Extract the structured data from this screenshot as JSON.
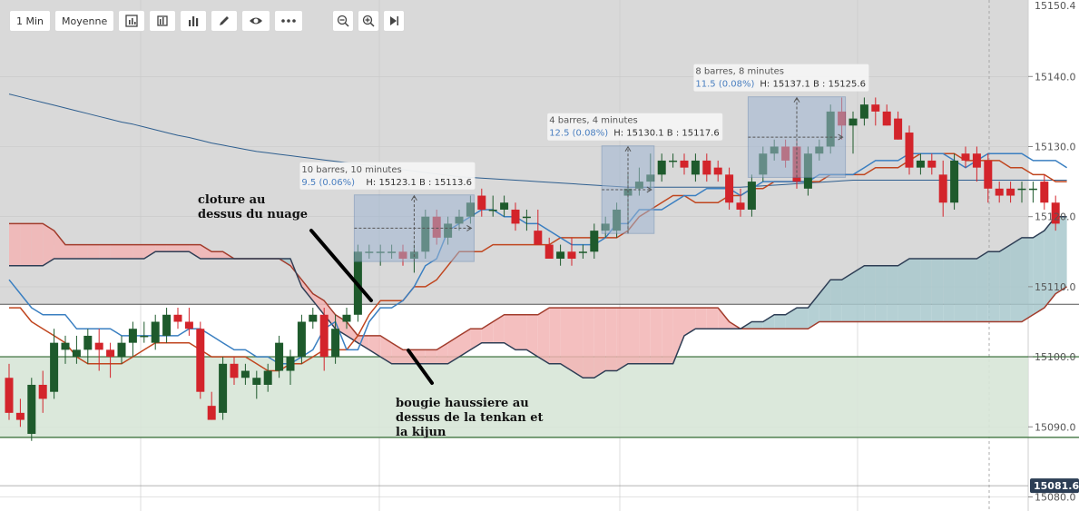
{
  "toolbar": {
    "timeframe": "1 Min",
    "mode": "Moyenne",
    "icons": [
      "indicators-icon",
      "compare-icon",
      "bar-chart-icon",
      "draw-icon",
      "eye-icon",
      "more-icon"
    ],
    "zoom_icons": [
      "zoom-out-icon",
      "zoom-in-icon",
      "play-icon"
    ]
  },
  "colors": {
    "bull": "#1e5a2c",
    "bear": "#d3242b",
    "tenkan": "#3a7fc1",
    "kijun": "#c0461f",
    "senkou_a": "#a23c2c",
    "senkou_b": "#2e3e55",
    "cloud_bear": "#f2b4b4",
    "cloud_bull": "#a8c8cc",
    "ma": "#2f5f8f",
    "zone": "#d7e5d7",
    "zone_line": "#4f7f4f",
    "grey_bg": "#d9d9d9"
  },
  "chart_data": {
    "type": "candlestick",
    "ylim": [
      15080.0,
      15150.4
    ],
    "y_ticks": [
      "15080.0",
      "15090.0",
      "15100.0",
      "15110.0",
      "15120.0",
      "15130.0",
      "15140.0"
    ],
    "top_price_label": "15150.4",
    "current_price_label": "15081.6",
    "horizontal_levels": [
      15107.5,
      15100.0,
      15088.5
    ],
    "candles": [
      {
        "o": 15097,
        "h": 15099,
        "l": 15091,
        "c": 15092
      },
      {
        "o": 15092,
        "h": 15094,
        "l": 15090,
        "c": 15091
      },
      {
        "o": 15089,
        "h": 15097,
        "l": 15088,
        "c": 15096
      },
      {
        "o": 15096,
        "h": 15098,
        "l": 15092,
        "c": 15094
      },
      {
        "o": 15095,
        "h": 15104,
        "l": 15094,
        "c": 15102
      },
      {
        "o": 15101,
        "h": 15103,
        "l": 15099,
        "c": 15102
      },
      {
        "o": 15100,
        "h": 15103,
        "l": 15099,
        "c": 15101
      },
      {
        "o": 15101,
        "h": 15104,
        "l": 15099,
        "c": 15103
      },
      {
        "o": 15102,
        "h": 15104,
        "l": 15098,
        "c": 15101
      },
      {
        "o": 15101,
        "h": 15102,
        "l": 15097,
        "c": 15100
      },
      {
        "o": 15100,
        "h": 15103,
        "l": 15099,
        "c": 15102
      },
      {
        "o": 15102,
        "h": 15105,
        "l": 15100,
        "c": 15104
      },
      {
        "o": 15103,
        "h": 15105,
        "l": 15102,
        "c": 15103
      },
      {
        "o": 15102,
        "h": 15106,
        "l": 15101,
        "c": 15105
      },
      {
        "o": 15103,
        "h": 15107,
        "l": 15102,
        "c": 15106
      },
      {
        "o": 15106,
        "h": 15107,
        "l": 15104,
        "c": 15105
      },
      {
        "o": 15105,
        "h": 15107,
        "l": 15103,
        "c": 15104
      },
      {
        "o": 15104,
        "h": 15105,
        "l": 15094,
        "c": 15095
      },
      {
        "o": 15093,
        "h": 15095,
        "l": 15091,
        "c": 15091
      },
      {
        "o": 15092,
        "h": 15100,
        "l": 15091,
        "c": 15099
      },
      {
        "o": 15099,
        "h": 15100,
        "l": 15096,
        "c": 15097
      },
      {
        "o": 15097,
        "h": 15099,
        "l": 15096,
        "c": 15098
      },
      {
        "o": 15096,
        "h": 15098,
        "l": 15094,
        "c": 15097
      },
      {
        "o": 15096,
        "h": 15099,
        "l": 15095,
        "c": 15098
      },
      {
        "o": 15098,
        "h": 15103,
        "l": 15097,
        "c": 15102
      },
      {
        "o": 15098,
        "h": 15101,
        "l": 15096,
        "c": 15100
      },
      {
        "o": 15100,
        "h": 15106,
        "l": 15099,
        "c": 15105
      },
      {
        "o": 15105,
        "h": 15107,
        "l": 15104,
        "c": 15106
      },
      {
        "o": 15106,
        "h": 15107,
        "l": 15098,
        "c": 15100
      },
      {
        "o": 15100,
        "h": 15106,
        "l": 15099,
        "c": 15104
      },
      {
        "o": 15105,
        "h": 15107,
        "l": 15104,
        "c": 15106
      },
      {
        "o": 15106,
        "h": 15116,
        "l": 15105,
        "c": 15115
      },
      {
        "o": 15115,
        "h": 15116,
        "l": 15114,
        "c": 15115
      },
      {
        "o": 15115,
        "h": 15116,
        "l": 15113,
        "c": 15115
      },
      {
        "o": 15115,
        "h": 15116,
        "l": 15114,
        "c": 15115
      },
      {
        "o": 15115,
        "h": 15116,
        "l": 15113,
        "c": 15114
      },
      {
        "o": 15114,
        "h": 15116,
        "l": 15112,
        "c": 15115
      },
      {
        "o": 15115,
        "h": 15121,
        "l": 15114,
        "c": 15120
      },
      {
        "o": 15120,
        "h": 15121,
        "l": 15116,
        "c": 15117
      },
      {
        "o": 15117,
        "h": 15120,
        "l": 15116,
        "c": 15119
      },
      {
        "o": 15119,
        "h": 15121,
        "l": 15118,
        "c": 15120
      },
      {
        "o": 15120,
        "h": 15123,
        "l": 15119,
        "c": 15122
      },
      {
        "o": 15123,
        "h": 15124,
        "l": 15120,
        "c": 15121
      },
      {
        "o": 15121,
        "h": 15123,
        "l": 15120,
        "c": 15121
      },
      {
        "o": 15121,
        "h": 15123,
        "l": 15120,
        "c": 15122
      },
      {
        "o": 15121,
        "h": 15122,
        "l": 15118,
        "c": 15119
      },
      {
        "o": 15120,
        "h": 15121,
        "l": 15118,
        "c": 15120
      },
      {
        "o": 15118,
        "h": 15121,
        "l": 15116,
        "c": 15116
      },
      {
        "o": 15116,
        "h": 15117,
        "l": 15114,
        "c": 15114
      },
      {
        "o": 15114,
        "h": 15116,
        "l": 15113,
        "c": 15115
      },
      {
        "o": 15115,
        "h": 15117,
        "l": 15113,
        "c": 15114
      },
      {
        "o": 15115,
        "h": 15116,
        "l": 15114,
        "c": 15115
      },
      {
        "o": 15115,
        "h": 15119,
        "l": 15114,
        "c": 15118
      },
      {
        "o": 15118,
        "h": 15120,
        "l": 15117,
        "c": 15119
      },
      {
        "o": 15118,
        "h": 15122,
        "l": 15117,
        "c": 15121
      },
      {
        "o": 15123,
        "h": 15126,
        "l": 15118,
        "c": 15124
      },
      {
        "o": 15124,
        "h": 15127,
        "l": 15123,
        "c": 15125
      },
      {
        "o": 15125,
        "h": 15129,
        "l": 15124,
        "c": 15126
      },
      {
        "o": 15126,
        "h": 15129,
        "l": 15125,
        "c": 15128
      },
      {
        "o": 15128,
        "h": 15129,
        "l": 15127,
        "c": 15128
      },
      {
        "o": 15128,
        "h": 15129,
        "l": 15126,
        "c": 15127
      },
      {
        "o": 15126,
        "h": 15129,
        "l": 15125,
        "c": 15128
      },
      {
        "o": 15128,
        "h": 15129,
        "l": 15125,
        "c": 15126
      },
      {
        "o": 15127,
        "h": 15128,
        "l": 15125,
        "c": 15126
      },
      {
        "o": 15126,
        "h": 15127,
        "l": 15121,
        "c": 15122
      },
      {
        "o": 15122,
        "h": 15124,
        "l": 15120,
        "c": 15121
      },
      {
        "o": 15121,
        "h": 15126,
        "l": 15120,
        "c": 15125
      },
      {
        "o": 15126,
        "h": 15130,
        "l": 15125,
        "c": 15129
      },
      {
        "o": 15129,
        "h": 15131,
        "l": 15128,
        "c": 15130
      },
      {
        "o": 15130,
        "h": 15131,
        "l": 15127,
        "c": 15128
      },
      {
        "o": 15130,
        "h": 15131,
        "l": 15124,
        "c": 15125
      },
      {
        "o": 15124,
        "h": 15130,
        "l": 15123,
        "c": 15129
      },
      {
        "o": 15129,
        "h": 15131,
        "l": 15128,
        "c": 15130
      },
      {
        "o": 15130,
        "h": 15136,
        "l": 15129,
        "c": 15135
      },
      {
        "o": 15135,
        "h": 15137,
        "l": 15131,
        "c": 15133
      },
      {
        "o": 15133,
        "h": 15135,
        "l": 15129,
        "c": 15134
      },
      {
        "o": 15134,
        "h": 15137,
        "l": 15133,
        "c": 15136
      },
      {
        "o": 15136,
        "h": 15137,
        "l": 15133,
        "c": 15135
      },
      {
        "o": 15135,
        "h": 15136,
        "l": 15133,
        "c": 15133
      },
      {
        "o": 15134,
        "h": 15135,
        "l": 15131,
        "c": 15131
      },
      {
        "o": 15132,
        "h": 15133,
        "l": 15126,
        "c": 15127
      },
      {
        "o": 15127,
        "h": 15129,
        "l": 15126,
        "c": 15128
      },
      {
        "o": 15128,
        "h": 15129,
        "l": 15126,
        "c": 15127
      },
      {
        "o": 15126,
        "h": 15128,
        "l": 15120,
        "c": 15122
      },
      {
        "o": 15122,
        "h": 15129,
        "l": 15121,
        "c": 15128
      },
      {
        "o": 15129,
        "h": 15130,
        "l": 15127,
        "c": 15128
      },
      {
        "o": 15129,
        "h": 15130,
        "l": 15125,
        "c": 15127
      },
      {
        "o": 15128,
        "h": 15129,
        "l": 15122,
        "c": 15124
      },
      {
        "o": 15124,
        "h": 15125,
        "l": 15122,
        "c": 15123
      },
      {
        "o": 15124,
        "h": 15125,
        "l": 15122,
        "c": 15123
      },
      {
        "o": 15124,
        "h": 15125,
        "l": 15122,
        "c": 15124
      },
      {
        "o": 15124,
        "h": 15125,
        "l": 15122,
        "c": 15124
      },
      {
        "o": 15125,
        "h": 15126,
        "l": 15121,
        "c": 15122
      },
      {
        "o": 15122,
        "h": 15123,
        "l": 15118,
        "c": 15119
      }
    ],
    "tenkan": [
      15111,
      15109,
      15107,
      15106,
      15106,
      15106,
      15104,
      15104,
      15104,
      15104,
      15103,
      15103,
      15103,
      15103,
      15103,
      15103,
      15104,
      15104,
      15103,
      15102,
      15101,
      15101,
      15100,
      15100,
      15099,
      15099,
      15100,
      15101,
      15104,
      15105,
      15101,
      15101,
      15105,
      15107,
      15107,
      15108,
      15110,
      15113,
      15114,
      15118,
      15119,
      15120,
      15121,
      15121,
      15120,
      15120,
      15119,
      15119,
      15118,
      15117,
      15116,
      15116,
      15116,
      15117,
      15119,
      15119,
      15121,
      15121,
      15121,
      15122,
      15123,
      15123,
      15124,
      15124,
      15124,
      15123,
      15124,
      15125,
      15125,
      15125,
      15125,
      15125,
      15126,
      15126,
      15126,
      15126,
      15127,
      15128,
      15128,
      15128,
      15129,
      15129,
      15129,
      15129,
      15128,
      15127,
      15128,
      15129,
      15129,
      15129,
      15129,
      15128,
      15128,
      15128,
      15127
    ],
    "kijun": [
      15107,
      15107,
      15105,
      15104,
      15103,
      15102,
      15100,
      15099,
      15099,
      15099,
      15099,
      15100,
      15101,
      15102,
      15102,
      15102,
      15102,
      15101,
      15100,
      15100,
      15100,
      15100,
      15099,
      15098,
      15098,
      15099,
      15099,
      15100,
      15101,
      15101,
      15101,
      15103,
      15106,
      15108,
      15108,
      15108,
      15110,
      15110,
      15111,
      15113,
      15115,
      15115,
      15115,
      15116,
      15116,
      15116,
      15116,
      15116,
      15116,
      15117,
      15117,
      15117,
      15117,
      15117,
      15117,
      15118,
      15120,
      15121,
      15122,
      15123,
      15123,
      15122,
      15122,
      15122,
      15123,
      15123,
      15124,
      15124,
      15125,
      15125,
      15125,
      15125,
      15125,
      15126,
      15126,
      15126,
      15126,
      15127,
      15127,
      15127,
      15128,
      15129,
      15129,
      15129,
      15129,
      15128,
      15128,
      15128,
      15128,
      15127,
      15127,
      15126,
      15126,
      15125,
      15125
    ],
    "senkou_a": [
      15119,
      15119,
      15119,
      15119,
      15118,
      15116,
      15116,
      15116,
      15116,
      15116,
      15116,
      15116,
      15116,
      15116,
      15116,
      15116,
      15116,
      15116,
      15115,
      15115,
      15114,
      15114,
      15114,
      15114,
      15114,
      15113,
      15111,
      15109,
      15108,
      15106,
      15105,
      15103,
      15103,
      15103,
      15102,
      15101,
      15101,
      15101,
      15101,
      15102,
      15103,
      15104,
      15104,
      15105,
      15106,
      15106,
      15106,
      15106,
      15107,
      15107,
      15107,
      15107,
      15107,
      15107,
      15107,
      15107,
      15107,
      15107,
      15107,
      15107,
      15107,
      15107,
      15107,
      15107,
      15105,
      15104,
      15104,
      15104,
      15104,
      15104,
      15104,
      15104,
      15105,
      15105,
      15105,
      15105,
      15105,
      15105,
      15105,
      15105,
      15105,
      15105,
      15105,
      15105,
      15105,
      15105,
      15105,
      15105,
      15105,
      15105,
      15105,
      15106,
      15107,
      15109,
      15110
    ],
    "senkou_b": [
      15113,
      15113,
      15113,
      15113,
      15114,
      15114,
      15114,
      15114,
      15114,
      15114,
      15114,
      15114,
      15114,
      15115,
      15115,
      15115,
      15115,
      15114,
      15114,
      15114,
      15114,
      15114,
      15114,
      15114,
      15114,
      15114,
      15110,
      15108,
      15106,
      15104,
      15103,
      15102,
      15101,
      15100,
      15099,
      15099,
      15099,
      15099,
      15099,
      15099,
      15100,
      15101,
      15102,
      15102,
      15102,
      15101,
      15101,
      15100,
      15099,
      15099,
      15098,
      15097,
      15097,
      15098,
      15098,
      15099,
      15099,
      15099,
      15099,
      15099,
      15103,
      15104,
      15104,
      15104,
      15104,
      15104,
      15105,
      15105,
      15106,
      15106,
      15107,
      15107,
      15109,
      15111,
      15111,
      15112,
      15113,
      15113,
      15113,
      15113,
      15114,
      15114,
      15114,
      15114,
      15114,
      15114,
      15114,
      15115,
      15115,
      15116,
      15117,
      15117,
      15118,
      15120,
      15120
    ],
    "ma": [
      15137.5,
      15137.1,
      15136.7,
      15136.3,
      15135.9,
      15135.5,
      15135.1,
      15134.7,
      15134.3,
      15133.9,
      15133.5,
      15133.2,
      15132.8,
      15132.4,
      15132.0,
      15131.6,
      15131.3,
      15130.9,
      15130.5,
      15130.2,
      15129.9,
      15129.6,
      15129.3,
      15129.1,
      15128.9,
      15128.7,
      15128.5,
      15128.3,
      15128.1,
      15127.9,
      15127.7,
      15127.5,
      15127.3,
      15127.1,
      15126.9,
      15126.7,
      15126.5,
      15126.3,
      15126.1,
      15125.9,
      15125.7,
      15125.6,
      15125.5,
      15125.4,
      15125.3,
      15125.2,
      15125.1,
      15125.0,
      15124.9,
      15124.8,
      15124.7,
      15124.6,
      15124.5,
      15124.4,
      15124.3,
      15124.2,
      15124.2,
      15124.2,
      15124.2,
      15124.2,
      15124.2,
      15124.2,
      15124.2,
      15124.2,
      15124.2,
      15124.2,
      15124.3,
      15124.4,
      15124.5,
      15124.6,
      15124.7,
      15124.8,
      15124.9,
      15125.0,
      15125.1,
      15125.2,
      15125.2,
      15125.2,
      15125.2,
      15125.2,
      15125.2,
      15125.2,
      15125.2,
      15125.2,
      15125.2,
      15125.2,
      15125.2,
      15125.2,
      15125.2,
      15125.2,
      15125.2,
      15125.2,
      15125.2,
      15125.2,
      15125.2
    ],
    "measure_boxes": [
      {
        "title": "10 barres, 10 minutes",
        "change": "9.5 (0.06%)",
        "hl": "H: 15123.1 B : 15113.6",
        "from": 31,
        "to": 41,
        "high": 15123.1,
        "low": 15113.6
      },
      {
        "title": "4 barres, 4 minutes",
        "change": "12.5 (0.08%)",
        "hl": "H: 15130.1 B : 15117.6",
        "from": 53,
        "to": 57,
        "high": 15130.1,
        "low": 15117.6
      },
      {
        "title": "8 barres, 8 minutes",
        "change": "11.5 (0.08%)",
        "hl": "H: 15137.1 B : 15125.6",
        "from": 66,
        "to": 74,
        "high": 15137.1,
        "low": 15125.6
      }
    ],
    "annotations": [
      {
        "lines": [
          "cloture au",
          "dessus du nuage"
        ]
      },
      {
        "lines": [
          "bougie haussiere au",
          "dessus de la tenkan et",
          "la kijun"
        ]
      }
    ]
  }
}
